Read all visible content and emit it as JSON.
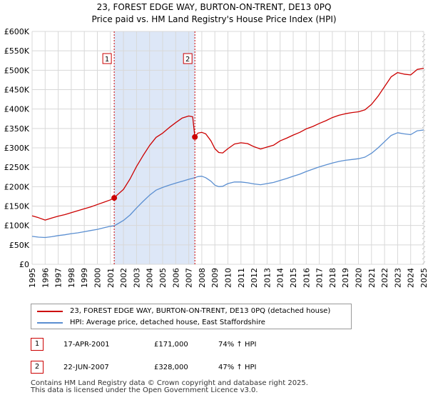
{
  "chart_data": {
    "type": "line",
    "title": "23, FOREST EDGE WAY, BURTON-ON-TRENT, DE13 0PQ",
    "subtitle": "Price paid vs. HM Land Registry's House Price Index (HPI)",
    "xlabel": "",
    "ylabel": "",
    "xlim": [
      1995,
      2025
    ],
    "ylim": [
      0,
      600000
    ],
    "x_ticks": [
      1995,
      1996,
      1997,
      1998,
      1999,
      2000,
      2001,
      2002,
      2003,
      2004,
      2005,
      2006,
      2007,
      2008,
      2009,
      2010,
      2011,
      2012,
      2013,
      2014,
      2015,
      2016,
      2017,
      2018,
      2019,
      2020,
      2021,
      2022,
      2023,
      2024,
      2025
    ],
    "y_ticks": [
      {
        "value": 0,
        "label": "£0"
      },
      {
        "value": 50000,
        "label": "£50K"
      },
      {
        "value": 100000,
        "label": "£100K"
      },
      {
        "value": 150000,
        "label": "£150K"
      },
      {
        "value": 200000,
        "label": "£200K"
      },
      {
        "value": 250000,
        "label": "£250K"
      },
      {
        "value": 300000,
        "label": "£300K"
      },
      {
        "value": 350000,
        "label": "£350K"
      },
      {
        "value": 400000,
        "label": "£400K"
      },
      {
        "value": 450000,
        "label": "£450K"
      },
      {
        "value": 500000,
        "label": "£500K"
      },
      {
        "value": 550000,
        "label": "£550K"
      },
      {
        "value": 600000,
        "label": "£600K"
      }
    ],
    "grid": true,
    "series": [
      {
        "name": "23, FOREST EDGE WAY, BURTON-ON-TRENT, DE13 0PQ (detached house)",
        "color": "#cc0000",
        "points": [
          [
            1995.0,
            125000
          ],
          [
            1995.5,
            120000
          ],
          [
            1996.0,
            114000
          ],
          [
            1996.5,
            119000
          ],
          [
            1997.0,
            124000
          ],
          [
            1997.5,
            128000
          ],
          [
            1998.0,
            133000
          ],
          [
            1998.5,
            138000
          ],
          [
            1999.0,
            143000
          ],
          [
            1999.5,
            148000
          ],
          [
            2000.0,
            154000
          ],
          [
            2000.5,
            160000
          ],
          [
            2001.0,
            166000
          ],
          [
            2001.29,
            171000
          ],
          [
            2001.5,
            178000
          ],
          [
            2002.0,
            193000
          ],
          [
            2002.5,
            220000
          ],
          [
            2003.0,
            252000
          ],
          [
            2003.5,
            280000
          ],
          [
            2004.0,
            306000
          ],
          [
            2004.5,
            327000
          ],
          [
            2005.0,
            338000
          ],
          [
            2005.5,
            352000
          ],
          [
            2006.0,
            365000
          ],
          [
            2006.5,
            377000
          ],
          [
            2007.0,
            382000
          ],
          [
            2007.3,
            380000
          ],
          [
            2007.47,
            328000
          ],
          [
            2007.7,
            338000
          ],
          [
            2008.0,
            340000
          ],
          [
            2008.3,
            336000
          ],
          [
            2008.7,
            318000
          ],
          [
            2009.0,
            298000
          ],
          [
            2009.3,
            288000
          ],
          [
            2009.6,
            287000
          ],
          [
            2010.0,
            298000
          ],
          [
            2010.5,
            310000
          ],
          [
            2011.0,
            313000
          ],
          [
            2011.5,
            311000
          ],
          [
            2012.0,
            303000
          ],
          [
            2012.5,
            297000
          ],
          [
            2013.0,
            302000
          ],
          [
            2013.5,
            307000
          ],
          [
            2014.0,
            318000
          ],
          [
            2014.5,
            325000
          ],
          [
            2015.0,
            333000
          ],
          [
            2015.5,
            340000
          ],
          [
            2016.0,
            349000
          ],
          [
            2016.5,
            355000
          ],
          [
            2017.0,
            363000
          ],
          [
            2017.5,
            370000
          ],
          [
            2018.0,
            378000
          ],
          [
            2018.5,
            384000
          ],
          [
            2019.0,
            388000
          ],
          [
            2019.5,
            391000
          ],
          [
            2020.0,
            393000
          ],
          [
            2020.5,
            398000
          ],
          [
            2021.0,
            412000
          ],
          [
            2021.5,
            433000
          ],
          [
            2022.0,
            458000
          ],
          [
            2022.5,
            483000
          ],
          [
            2023.0,
            494000
          ],
          [
            2023.5,
            490000
          ],
          [
            2024.0,
            488000
          ],
          [
            2024.5,
            502000
          ],
          [
            2025.0,
            505000
          ]
        ]
      },
      {
        "name": "HPI: Average price, detached house, East Staffordshire",
        "color": "#5b8fd1",
        "points": [
          [
            1995.0,
            72000
          ],
          [
            1995.5,
            70000
          ],
          [
            1996.0,
            69000
          ],
          [
            1996.5,
            71000
          ],
          [
            1997.0,
            74000
          ],
          [
            1997.5,
            76000
          ],
          [
            1998.0,
            79000
          ],
          [
            1998.5,
            81000
          ],
          [
            1999.0,
            84000
          ],
          [
            1999.5,
            87000
          ],
          [
            2000.0,
            90000
          ],
          [
            2000.5,
            94000
          ],
          [
            2001.0,
            98000
          ],
          [
            2001.29,
            99000
          ],
          [
            2001.5,
            103000
          ],
          [
            2002.0,
            113000
          ],
          [
            2002.5,
            127000
          ],
          [
            2003.0,
            145000
          ],
          [
            2003.5,
            162000
          ],
          [
            2004.0,
            178000
          ],
          [
            2004.5,
            191000
          ],
          [
            2005.0,
            198000
          ],
          [
            2005.5,
            204000
          ],
          [
            2006.0,
            209000
          ],
          [
            2006.5,
            214000
          ],
          [
            2007.0,
            219000
          ],
          [
            2007.47,
            223000
          ],
          [
            2007.7,
            226000
          ],
          [
            2008.0,
            227000
          ],
          [
            2008.3,
            223000
          ],
          [
            2008.7,
            214000
          ],
          [
            2009.0,
            204000
          ],
          [
            2009.3,
            200000
          ],
          [
            2009.6,
            201000
          ],
          [
            2010.0,
            208000
          ],
          [
            2010.5,
            212000
          ],
          [
            2011.0,
            212000
          ],
          [
            2011.5,
            210000
          ],
          [
            2012.0,
            207000
          ],
          [
            2012.5,
            205000
          ],
          [
            2013.0,
            208000
          ],
          [
            2013.5,
            211000
          ],
          [
            2014.0,
            216000
          ],
          [
            2014.5,
            221000
          ],
          [
            2015.0,
            227000
          ],
          [
            2015.5,
            232000
          ],
          [
            2016.0,
            239000
          ],
          [
            2016.5,
            245000
          ],
          [
            2017.0,
            251000
          ],
          [
            2017.5,
            256000
          ],
          [
            2018.0,
            261000
          ],
          [
            2018.5,
            265000
          ],
          [
            2019.0,
            268000
          ],
          [
            2019.5,
            270000
          ],
          [
            2020.0,
            272000
          ],
          [
            2020.5,
            276000
          ],
          [
            2021.0,
            286000
          ],
          [
            2021.5,
            300000
          ],
          [
            2022.0,
            316000
          ],
          [
            2022.5,
            332000
          ],
          [
            2023.0,
            339000
          ],
          [
            2023.5,
            336000
          ],
          [
            2024.0,
            334000
          ],
          [
            2024.5,
            344000
          ],
          [
            2025.0,
            346000
          ]
        ]
      }
    ],
    "annotations": [
      {
        "label": "1",
        "x": 2001.29,
        "price": 171000
      },
      {
        "label": "2",
        "x": 2007.47,
        "price": 328000
      }
    ],
    "shaded_range": [
      2001.29,
      2007.47
    ],
    "future_hatch_from": 2025.0
  },
  "legend": {
    "property_label": "23, FOREST EDGE WAY, BURTON-ON-TRENT, DE13 0PQ (detached house)",
    "hpi_label": "HPI: Average price, detached house, East Staffordshire"
  },
  "sales": [
    {
      "badge": "1",
      "date": "17-APR-2001",
      "price": "£171,000",
      "hpi": "74% ↑ HPI"
    },
    {
      "badge": "2",
      "date": "22-JUN-2007",
      "price": "£328,000",
      "hpi": "47% ↑ HPI"
    }
  ],
  "footer": {
    "line1": "Contains HM Land Registry data © Crown copyright and database right 2025.",
    "line2": "This data is licensed under the Open Government Licence v3.0."
  },
  "colors": {
    "property": "#cc0000",
    "hpi": "#5b8fd1",
    "shade": "#dde7f7"
  }
}
